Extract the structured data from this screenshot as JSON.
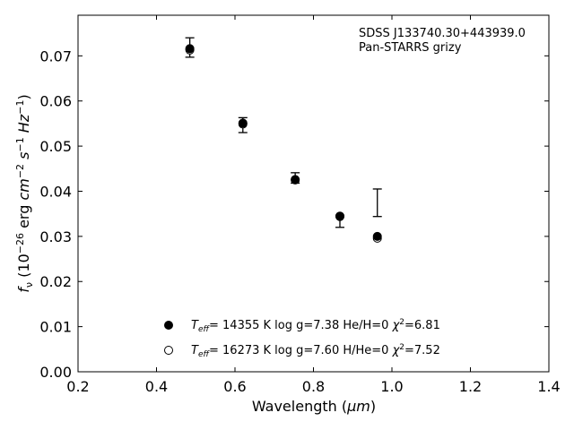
{
  "chart_data": {
    "type": "scatter",
    "xlabel_prefix": "Wavelength (",
    "xlabel_unit": "μm",
    "xlabel_suffix": ")",
    "ylabel_parts": [
      "f",
      "ν",
      " (10",
      "−26",
      " erg ",
      "cm",
      "−2",
      " ",
      "s",
      "−1",
      " ",
      "Hz",
      "−1",
      ")"
    ],
    "xlim": [
      0.2,
      1.4
    ],
    "ylim": [
      0.0,
      0.079
    ],
    "xticks": [
      0.2,
      0.4,
      0.6,
      0.8,
      1.0,
      1.2,
      1.4
    ],
    "xtick_labels": [
      "0.2",
      "0.4",
      "0.6",
      "0.8",
      "1.0",
      "1.2",
      "1.4"
    ],
    "yticks": [
      0.0,
      0.01,
      0.02,
      0.03,
      0.04,
      0.05,
      0.06,
      0.07
    ],
    "ytick_labels": [
      "0.00",
      "0.01",
      "0.02",
      "0.03",
      "0.04",
      "0.05",
      "0.06",
      "0.07"
    ],
    "annotation": [
      "SDSS J133740.30+443939.0",
      "Pan-STARRS grizy"
    ],
    "observed": {
      "wavelengths": [
        0.4849,
        0.6201,
        0.7535,
        0.8674,
        0.9628
      ],
      "flux": [
        0.0717,
        0.0547,
        0.0428,
        0.0339,
        0.0374
      ],
      "err_low": [
        0.0697,
        0.053,
        0.0418,
        0.032,
        0.0344
      ],
      "err_high": [
        0.074,
        0.0563,
        0.0441,
        0.0347,
        0.0405
      ]
    },
    "series": [
      {
        "marker": "filled",
        "x": [
          0.4849,
          0.6201,
          0.7535,
          0.8674,
          0.9628
        ],
        "y": [
          0.0716,
          0.0551,
          0.0426,
          0.0345,
          0.03
        ],
        "legend_parts": [
          "T",
          "eff",
          "= 14355 K  log g=7.38  He/H=0  ",
          "χ",
          "2",
          "=6.81"
        ]
      },
      {
        "marker": "open",
        "x": [
          0.4849,
          0.6201,
          0.7535,
          0.8674,
          0.9628
        ],
        "y": [
          0.0713,
          0.0549,
          0.0425,
          0.0344,
          0.0296
        ],
        "legend_parts": [
          "T",
          "eff",
          "= 16273 K  log g=7.60  H/He=0  ",
          "χ",
          "2",
          "=7.52"
        ]
      }
    ],
    "legend_location": "bottom-center",
    "grid": false
  }
}
